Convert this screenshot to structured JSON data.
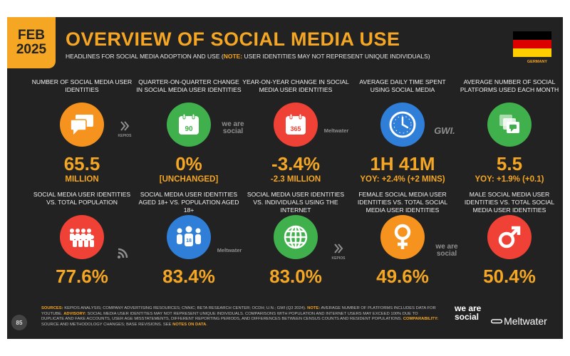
{
  "header": {
    "month": "FEB",
    "year": "2025",
    "title": "OVERVIEW OF SOCIAL MEDIA USE",
    "subtitle_main": "HEADLINES FOR SOCIAL MEDIA ADOPTION AND USE (",
    "subtitle_note_label": "NOTE:",
    "subtitle_note_text": " USER IDENTITIES MAY NOT REPRESENT UNIQUE INDIVIDUALS)",
    "country": "GERMANY",
    "flag_colors": [
      "#000000",
      "#dd0000",
      "#ffce00"
    ]
  },
  "stats": [
    {
      "label": "NUMBER OF SOCIAL MEDIA USER IDENTITIES",
      "value": "65.5",
      "sub": "MILLION",
      "icon": "chat-bubbles-icon",
      "color": "#f5931e"
    },
    {
      "label": "QUARTER-ON-QUARTER CHANGE IN SOCIAL MEDIA USER IDENTITIES",
      "value": "0%",
      "sub": "[UNCHANGED]",
      "icon_text": "90",
      "icon": "calendar-icon",
      "color": "#3fb04b"
    },
    {
      "label": "YEAR-ON-YEAR CHANGE IN SOCIAL MEDIA USER IDENTITIES",
      "value": "-3.4%",
      "sub": "-2.3 MILLION",
      "icon_text": "365",
      "icon": "calendar-icon",
      "color": "#ef4136"
    },
    {
      "label": "AVERAGE DAILY TIME SPENT USING SOCIAL MEDIA",
      "value": "1H 41M",
      "sub": "YOY: +2.4% (+2 MINS)",
      "icon": "clock-icon",
      "color": "#2f7fd8"
    },
    {
      "label": "AVERAGE NUMBER OF SOCIAL PLATFORMS USED EACH MONTH",
      "value": "5.5",
      "sub": "YOY: +1.9% (+0.1)",
      "icon": "stacked-windows-icon",
      "color": "#3fb04b"
    },
    {
      "label": "SOCIAL MEDIA USER IDENTITIES vs. TOTAL POPULATION",
      "value": "77.6%",
      "icon": "crowd-icon",
      "color": "#ef4136"
    },
    {
      "label": "SOCIAL MEDIA USER IDENTITIES AGED 18+ vs. POPULATION AGED 18+",
      "value": "83.4%",
      "icon_text": "18",
      "icon": "group-18-icon",
      "color": "#2f7fd8"
    },
    {
      "label": "SOCIAL MEDIA USER IDENTITIES vs. INDIVIDUALS USING THE INTERNET",
      "value": "83.0%",
      "icon": "globe-icon",
      "color": "#3fb04b"
    },
    {
      "label": "FEMALE SOCIAL MEDIA USER IDENTITIES vs. TOTAL SOCIAL MEDIA USER IDENTITIES",
      "value": "49.6%",
      "icon": "female-symbol-icon",
      "color": "#f5931e"
    },
    {
      "label": "MALE SOCIAL MEDIA USER IDENTITIES vs. TOTAL SOCIAL MEDIA USER IDENTITIES",
      "value": "50.4%",
      "icon": "male-symbol-icon",
      "color": "#ef4136"
    }
  ],
  "source_marks": {
    "kepios": "KEPIOS",
    "we_are_social": "we are social",
    "meltwater": "Meltwater",
    "gwi": "GWI."
  },
  "footer": {
    "sources_label": "SOURCES:",
    "sources_text": " KEPIOS ANALYSIS; COMPANY ADVERTISING RESOURCES; CNNIC; BETA RESEARCH CENTER; OCDH; U.N.; GWI (Q3 2024). ",
    "note_label": "NOTE:",
    "note_text": " AVERAGE NUMBER OF PLATFORMS INCLUDES DATA FOR YOUTUBE. ",
    "advisory_label": "ADVISORY:",
    "advisory_text": " SOCIAL MEDIA USER IDENTITIES MAY NOT REPRESENT UNIQUE INDIVIDUALS. COMPARISONS WITH POPULATION AND INTERNET USERS MAY EXCEED 100% DUE TO DUPLICATE AND FAKE ACCOUNTS, USER AGE MISSTATEMENTS, DIFFERENT REPORTING PERIODS, AND DIFFERENCES BETWEEN CENSUS COUNTS AND RESIDENT POPULATIONS. ",
    "comparability_label": "COMPARABILITY:",
    "comparability_text": " SOURCE AND METHODOLOGY CHANGES; BASE REVISIONS. SEE ",
    "notes_link": "NOTES ON DATA",
    "end": ".",
    "page_number": "85"
  },
  "brands": {
    "we_are_social": "we are social",
    "meltwater": "Meltwater"
  }
}
